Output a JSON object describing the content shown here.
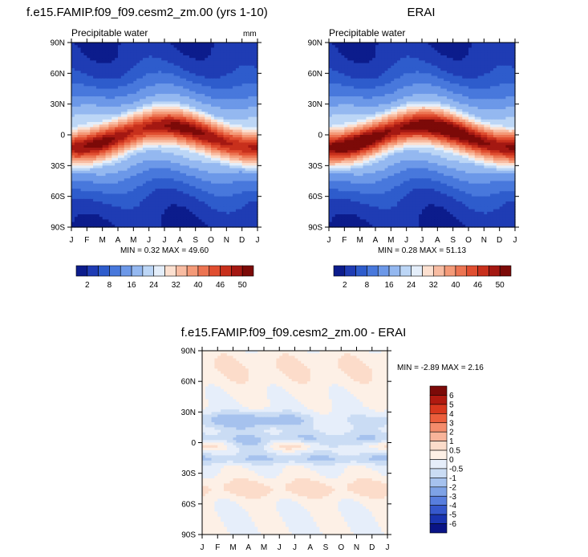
{
  "chart_data": [
    {
      "type": "heatmap",
      "title": "f.e15.FAMIP.f09_f09.cesm2_zm.00 (yrs 1-10)",
      "subtitle": "Precipitable water",
      "units": "mm",
      "stats_text": "MIN =   0.32 MAX =  49.60",
      "min": 0.32,
      "max": 49.6,
      "peak": 48.5,
      "x_ticks": [
        "J",
        "F",
        "M",
        "A",
        "M",
        "J",
        "J",
        "A",
        "S",
        "O",
        "N",
        "D",
        "J"
      ],
      "y_ticks": [
        "90N",
        "60N",
        "30N",
        "0",
        "30S",
        "60S",
        "90S"
      ],
      "ylim": [
        -90,
        90
      ],
      "colorbar_labels": [
        "2",
        "8",
        "16",
        "24",
        "32",
        "40",
        "46",
        "50"
      ]
    },
    {
      "type": "heatmap",
      "title": "ERAI",
      "subtitle": "Precipitable water",
      "stats_text": "MIN =   0.28 MAX =  51.13",
      "min": 0.28,
      "max": 51.13,
      "peak": 50.5,
      "x_ticks": [
        "J",
        "F",
        "M",
        "A",
        "M",
        "J",
        "J",
        "A",
        "S",
        "O",
        "N",
        "D",
        "J"
      ],
      "y_ticks": [
        "90N",
        "60N",
        "30N",
        "0",
        "30S",
        "60S",
        "90S"
      ],
      "ylim": [
        -90,
        90
      ],
      "colorbar_labels": [
        "2",
        "8",
        "16",
        "24",
        "32",
        "40",
        "46",
        "50"
      ]
    },
    {
      "type": "heatmap",
      "title": "f.e15.FAMIP.f09_f09.cesm2_zm.00 - ERAI",
      "stats_text": "MIN =  -2.89 MAX =   2.16",
      "min": -2.89,
      "max": 2.16,
      "x_ticks": [
        "J",
        "F",
        "M",
        "A",
        "M",
        "J",
        "J",
        "A",
        "S",
        "O",
        "N",
        "D",
        "J"
      ],
      "y_ticks": [
        "90N",
        "60N",
        "30N",
        "0",
        "30S",
        "60S",
        "90S"
      ],
      "ylim": [
        -90,
        90
      ],
      "colorbar_labels": [
        "6",
        "5",
        "4",
        "3",
        "2",
        "1",
        "0.5",
        "0",
        "-0.5",
        "-1",
        "-2",
        "-3",
        "-4",
        "-5",
        "-6"
      ]
    }
  ],
  "palettes": {
    "abs": [
      "#0c1c8c",
      "#1f3cb4",
      "#2e5ccc",
      "#4878dc",
      "#6c98e8",
      "#94b8f0",
      "#bcd6f6",
      "#e4eefa",
      "#fce0d0",
      "#f8bca2",
      "#f49a78",
      "#ec7452",
      "#e04e30",
      "#c8301c",
      "#a41812",
      "#7c0a08"
    ],
    "diff": [
      "#7c0a08",
      "#b01a10",
      "#d8381e",
      "#ec5e3c",
      "#f48c6c",
      "#f8b49a",
      "#fcdcca",
      "#fdf0e6",
      "#e6eefa",
      "#cadcf4",
      "#a6c2ee",
      "#7ea2e6",
      "#587ede",
      "#3658cc",
      "#1a34b0",
      "#0a1486"
    ]
  }
}
